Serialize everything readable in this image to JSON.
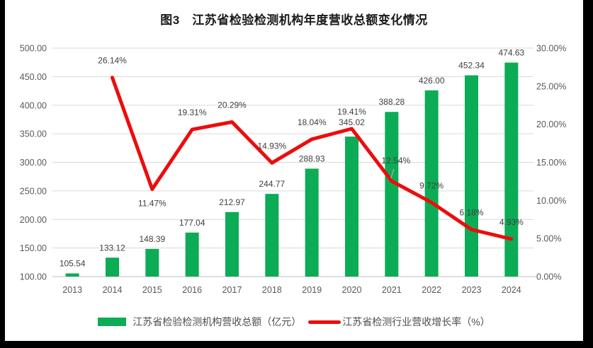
{
  "colors": {
    "bar": "#0BAC55",
    "line": "#EC0D0D",
    "gridline": "#D9D9D9",
    "axis_line": "#BFBFBF",
    "tick_label": "#595959",
    "data_label": "#404040",
    "leader_line": "#A6A6A6",
    "legend_text": "#4D4D4D",
    "title_text": "#1A1A1A",
    "edge": "#000000",
    "background": "#FFFFFF"
  },
  "chart_data": {
    "type": "combo-bar-line",
    "title": "图3　江苏省检验检测机构年度营收总额变化情况",
    "categories": [
      "2013",
      "2014",
      "2015",
      "2016",
      "2017",
      "2018",
      "2019",
      "2020",
      "2021",
      "2022",
      "2023",
      "2024"
    ],
    "series": [
      {
        "name": "江苏省检验检测机构营收总额（亿元）",
        "type": "bar",
        "axis": "left",
        "color": "#0BAC55",
        "values": [
          105.54,
          133.12,
          148.39,
          177.04,
          212.97,
          244.77,
          288.93,
          345.02,
          388.28,
          426.0,
          452.34,
          474.63
        ],
        "data_labels": [
          "105.54",
          "133.12",
          "148.39",
          "177.04",
          "212.97",
          "244.77",
          "288.93",
          "345.02",
          "388.28",
          "426.00",
          "452.34",
          "474.63"
        ]
      },
      {
        "name": "江苏省检测行业营收增长率（%）",
        "type": "line",
        "axis": "right",
        "color": "#EC0D0D",
        "values": [
          null,
          26.14,
          11.47,
          19.31,
          20.29,
          14.93,
          18.04,
          19.41,
          12.54,
          9.72,
          6.18,
          4.93
        ],
        "data_labels": [
          null,
          "26.14%",
          "11.47%",
          "19.31%",
          "20.29%",
          "14.93%",
          "18.04%",
          "19.41%",
          "12.54%",
          "9.72%",
          "6.18%",
          "4.93%"
        ]
      }
    ],
    "left_axis": {
      "min": 100,
      "max": 500,
      "step": 50,
      "tick_labels": [
        "500.00",
        "450.00",
        "400.00",
        "350.00",
        "300.00",
        "250.00",
        "200.00",
        "150.00",
        "100.00"
      ]
    },
    "right_axis": {
      "min": 0,
      "max": 30,
      "step": 5,
      "tick_labels": [
        "30.00%",
        "25.00%",
        "20.00%",
        "15.00%",
        "10.00%",
        "5.00%",
        "0.00%"
      ]
    },
    "gridlines": true,
    "legend_position": "bottom"
  }
}
